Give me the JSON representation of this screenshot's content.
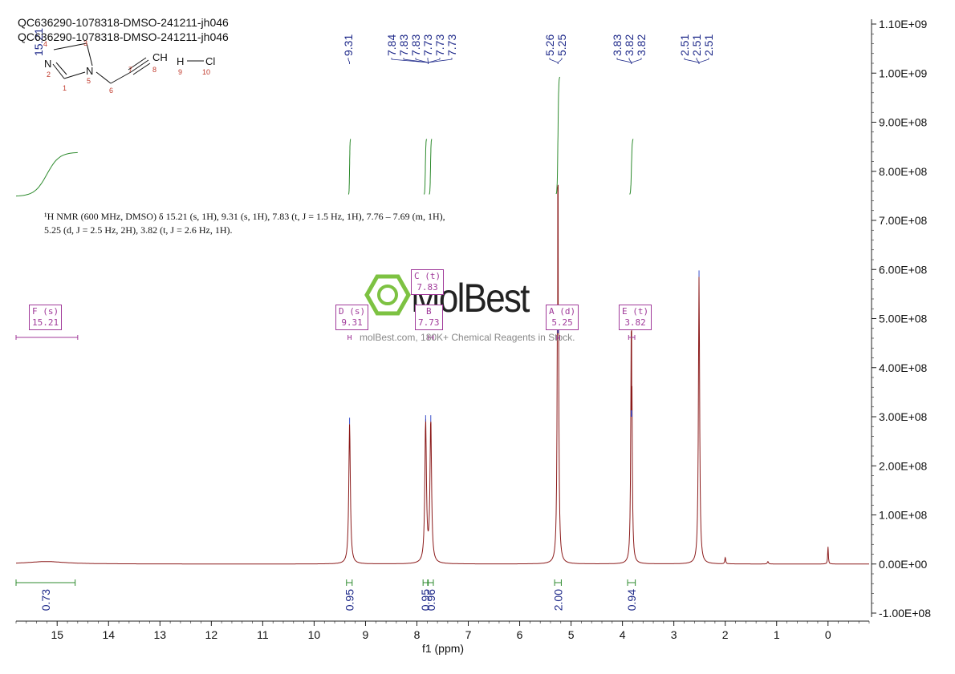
{
  "header": {
    "line1": "QC636290-1078318-DMSO-241211-jh046",
    "line2": "QC636290-1078318-DMSO-241211-jh046"
  },
  "nmr_description": {
    "line1": "¹H NMR (600 MHz, DMSO) δ 15.21 (s, 1H), 9.31 (s, 1H), 7.83 (t, J = 1.5 Hz, 1H), 7.76 – 7.69 (m, 1H),",
    "line2": "5.25 (d, J = 2.5 Hz, 2H), 3.82 (t, J = 2.6 Hz, 1H)."
  },
  "watermark": {
    "brand": "MolBest",
    "text": "molBest.com, 180K+ Chemical Reagents in Stock."
  },
  "molecule": {
    "atom_labels": [
      "N",
      "N",
      "CH",
      "H",
      "Cl"
    ],
    "atom_numbers": [
      "1",
      "2",
      "3",
      "4",
      "5",
      "6",
      "7",
      "8",
      "9",
      "10"
    ]
  },
  "multiplet_labels": [
    {
      "id": "F",
      "mult": "s",
      "shift": "15.21"
    },
    {
      "id": "D",
      "mult": "s",
      "shift": "9.31"
    },
    {
      "id": "C",
      "mult": "t",
      "shift": "7.83"
    },
    {
      "id": "B",
      "mult": "",
      "shift": "7.73"
    },
    {
      "id": "A",
      "mult": "d",
      "shift": "5.25"
    },
    {
      "id": "E",
      "mult": "t",
      "shift": "3.82"
    }
  ],
  "colors": {
    "spectrum": "#8b1a1a",
    "integral": "#2e8b2e",
    "peak_label": "#1f2a8a",
    "multiplet": "#a03a9a",
    "axis": "#222222",
    "logo": "#7dc242"
  },
  "chart_data": {
    "type": "line",
    "title": "",
    "xlabel": "f1 (ppm)",
    "ylabel": "",
    "x_reversed": true,
    "xlim": [
      15.8,
      -0.8
    ],
    "ylim": [
      -100000000,
      1100000000
    ],
    "x_ticks": [
      15,
      14,
      13,
      12,
      11,
      10,
      9,
      8,
      7,
      6,
      5,
      4,
      3,
      2,
      1,
      0
    ],
    "y_ticks": [
      {
        "value": 1100000000,
        "label": "1.10E+09"
      },
      {
        "value": 1000000000,
        "label": "1.00E+09"
      },
      {
        "value": 900000000,
        "label": "9.00E+08"
      },
      {
        "value": 800000000,
        "label": "8.00E+08"
      },
      {
        "value": 700000000,
        "label": "7.00E+08"
      },
      {
        "value": 600000000,
        "label": "6.00E+08"
      },
      {
        "value": 500000000,
        "label": "5.00E+08"
      },
      {
        "value": 400000000,
        "label": "4.00E+08"
      },
      {
        "value": 300000000,
        "label": "3.00E+08"
      },
      {
        "value": 200000000,
        "label": "2.00E+08"
      },
      {
        "value": 100000000,
        "label": "1.00E+08"
      },
      {
        "value": 0,
        "label": "0.00E+00"
      },
      {
        "value": -100000000,
        "label": "-1.00E+08"
      }
    ],
    "peaks": [
      {
        "ppm": 15.21,
        "height": 5000000,
        "width": 0.45
      },
      {
        "ppm": 9.31,
        "height": 285000000,
        "width": 0.018
      },
      {
        "ppm": 7.83,
        "height": 290000000,
        "width": 0.018
      },
      {
        "ppm": 7.73,
        "height": 290000000,
        "width": 0.018
      },
      {
        "ppm": 5.26,
        "height": 470000000,
        "width": 0.012
      },
      {
        "ppm": 5.25,
        "height": 470000000,
        "width": 0.012
      },
      {
        "ppm": 3.83,
        "height": 300000000,
        "width": 0.012
      },
      {
        "ppm": 3.82,
        "height": 300000000,
        "width": 0.012
      },
      {
        "ppm": 2.51,
        "height": 585000000,
        "width": 0.014
      },
      {
        "ppm": 2.0,
        "height": 13000000,
        "width": 0.01
      },
      {
        "ppm": 1.17,
        "height": 5000000,
        "width": 0.012
      },
      {
        "ppm": 0.0,
        "height": 35000000,
        "width": 0.008
      }
    ],
    "peak_labels": [
      {
        "ppm": 9.31,
        "text": "9.31"
      },
      {
        "ppm": 7.84,
        "text": "7.84"
      },
      {
        "ppm": 7.83,
        "text": "7.83"
      },
      {
        "ppm": 7.83,
        "text": "7.83"
      },
      {
        "ppm": 7.73,
        "text": "7.73"
      },
      {
        "ppm": 7.73,
        "text": "7.73"
      },
      {
        "ppm": 7.73,
        "text": "7.73"
      },
      {
        "ppm": 5.26,
        "text": "5.26"
      },
      {
        "ppm": 5.25,
        "text": "5.25"
      },
      {
        "ppm": 3.83,
        "text": "3.83"
      },
      {
        "ppm": 3.82,
        "text": "3.82"
      },
      {
        "ppm": 3.82,
        "text": "3.82"
      },
      {
        "ppm": 2.51,
        "text": "2.51"
      },
      {
        "ppm": 2.51,
        "text": "2.51"
      },
      {
        "ppm": 2.51,
        "text": "2.51"
      },
      {
        "ppm": 15.21,
        "text": "15.21"
      }
    ],
    "integrals": [
      {
        "from": 15.8,
        "to": 14.65,
        "value": "0.73"
      },
      {
        "from": 9.37,
        "to": 9.26,
        "value": "0.95"
      },
      {
        "from": 7.88,
        "to": 7.79,
        "value": "0.95"
      },
      {
        "from": 7.78,
        "to": 7.68,
        "value": "0.96"
      },
      {
        "from": 5.32,
        "to": 5.19,
        "value": "2.00"
      },
      {
        "from": 3.9,
        "to": 3.75,
        "value": "0.94"
      }
    ]
  }
}
